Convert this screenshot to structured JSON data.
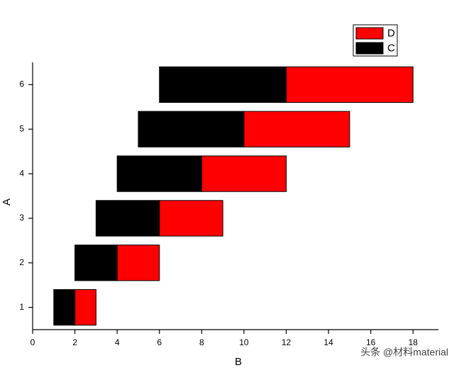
{
  "chart_data": {
    "type": "floating_bar",
    "orientation": "horizontal",
    "x_label": "B",
    "y_label": "A",
    "categories": [
      1,
      2,
      3,
      4,
      5,
      6
    ],
    "series": [
      {
        "name": "C",
        "color": "#000000",
        "low": [
          1,
          2,
          3,
          4,
          5,
          6
        ],
        "high": [
          2,
          4,
          6,
          8,
          10,
          12
        ]
      },
      {
        "name": "D",
        "color": "#ff0000",
        "low": [
          2,
          4,
          6,
          8,
          10,
          12
        ],
        "high": [
          3,
          6,
          9,
          12,
          15,
          18
        ]
      }
    ],
    "xlim": [
      0,
      19.2
    ],
    "xticks": [
      0,
      2,
      4,
      6,
      8,
      10,
      12,
      14,
      16,
      18
    ],
    "ylim": [
      0.5,
      6.5
    ],
    "yticks": [
      1,
      2,
      3,
      4,
      5,
      6
    ],
    "grid": false,
    "legend": "top-right",
    "watermark": "头条 @材料material"
  }
}
